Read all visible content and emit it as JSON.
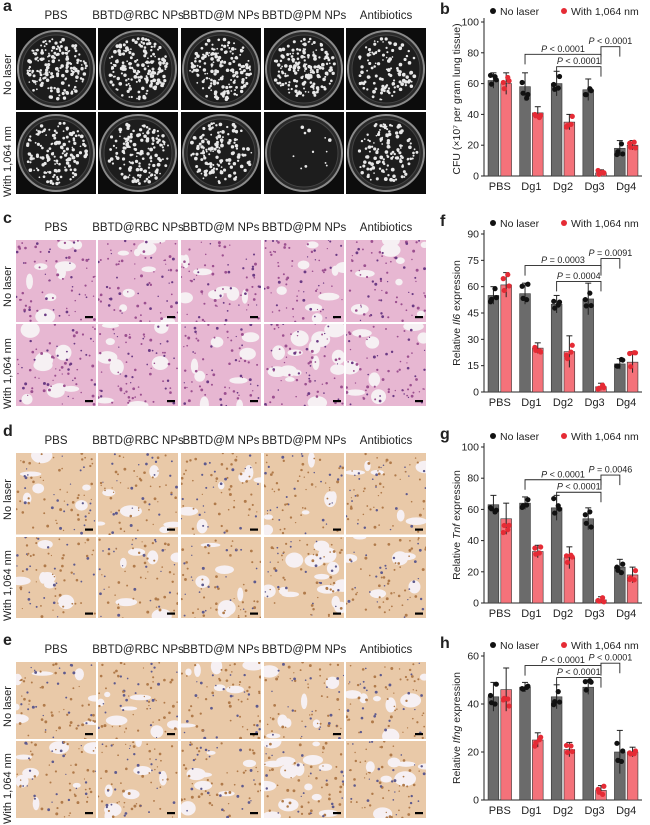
{
  "colors": {
    "gray": "#6b6b6b",
    "red": "#f4727a",
    "dark_dot": "#111111",
    "red_dot": "#e52b35"
  },
  "image_panels": [
    {
      "label": "a",
      "style": "petri",
      "columns": [
        "PBS",
        "BBTD@RBC NPs",
        "BBTD@M NPs",
        "BBTD@PM NPs",
        "Antibiotics"
      ],
      "rows": [
        "No laser",
        "With 1,064 nm"
      ]
    },
    {
      "label": "c",
      "style": "he",
      "columns": [
        "PBS",
        "BBTD@RBC NPs",
        "BBTD@M NPs",
        "BBTD@PM NPs",
        "Antibiotics"
      ],
      "rows": [
        "No laser",
        "With 1,064 nm"
      ]
    },
    {
      "label": "d",
      "style": "ihc",
      "columns": [
        "PBS",
        "BBTD@RBC NPs",
        "BBTD@M NPs",
        "BBTD@PM NPs",
        "Antibiotics"
      ],
      "rows": [
        "No laser",
        "With 1,064 nm"
      ]
    },
    {
      "label": "e",
      "style": "ihc",
      "columns": [
        "PBS",
        "BBTD@RBC NPs",
        "BBTD@M NPs",
        "BBTD@PM NPs",
        "Antibiotics"
      ],
      "rows": [
        "No laser",
        "With 1,064 nm"
      ]
    }
  ],
  "chart_data": [
    {
      "label": "b",
      "type": "bar",
      "categories": [
        "PBS",
        "Dg1",
        "Dg2",
        "Dg3",
        "Dg4"
      ],
      "ylabel": "CFU (×10⁷ per gram lung tissue)",
      "ylabel_italic_part": "",
      "ylim": [
        0,
        100
      ],
      "yticks": [
        0,
        20,
        40,
        60,
        80,
        100
      ],
      "series": [
        {
          "name": "No laser",
          "values": [
            62,
            58,
            60,
            56,
            18
          ],
          "err": [
            5,
            9,
            8,
            7,
            5
          ]
        },
        {
          "name": "With 1,064 nm",
          "values": [
            60,
            41,
            35,
            2,
            20
          ],
          "err": [
            7,
            4,
            5,
            2,
            3
          ]
        }
      ],
      "brackets": [
        {
          "text": "P < 0.0001",
          "from": [
            1,
            0
          ],
          "to": [
            3,
            1
          ],
          "level": 79
        },
        {
          "text": "P < 0.0001",
          "from": [
            2,
            0
          ],
          "to": [
            3,
            1
          ],
          "level": 71
        },
        {
          "text": "P < 0.0001",
          "from": [
            3,
            1
          ],
          "to": [
            4,
            0
          ],
          "level": 84
        }
      ]
    },
    {
      "label": "f",
      "type": "bar",
      "categories": [
        "PBS",
        "Dg1",
        "Dg2",
        "Dg3",
        "Dg4"
      ],
      "ylabel": "Relative Il6 expression",
      "ylabel_italic_part": "Il6",
      "ylim": [
        0,
        90
      ],
      "yticks": [
        0,
        15,
        30,
        45,
        60,
        75,
        90
      ],
      "series": [
        {
          "name": "No laser",
          "values": [
            55,
            56,
            50,
            53,
            16
          ],
          "err": [
            5,
            6,
            5,
            9,
            3
          ]
        },
        {
          "name": "With 1,064 nm",
          "values": [
            61,
            25,
            23,
            3,
            17
          ],
          "err": [
            7,
            3,
            9,
            2,
            6
          ]
        }
      ],
      "brackets": [
        {
          "text": "P = 0.0003",
          "from": [
            1,
            0
          ],
          "to": [
            3,
            1
          ],
          "level": 72
        },
        {
          "text": "P = 0.0004",
          "from": [
            2,
            0
          ],
          "to": [
            3,
            1
          ],
          "level": 63
        },
        {
          "text": "P = 0.0091",
          "from": [
            3,
            1
          ],
          "to": [
            4,
            0
          ],
          "level": 76
        }
      ]
    },
    {
      "label": "g",
      "type": "bar",
      "categories": [
        "PBS",
        "Dg1",
        "Dg2",
        "Dg3",
        "Dg4"
      ],
      "ylabel": "Relative Tnf expression",
      "ylabel_italic_part": "Tnf",
      "ylim": [
        0,
        100
      ],
      "yticks": [
        0,
        20,
        40,
        60,
        80,
        100
      ],
      "series": [
        {
          "name": "No laser",
          "values": [
            63,
            64,
            61,
            54,
            23
          ],
          "err": [
            6,
            4,
            8,
            7,
            5
          ]
        },
        {
          "name": "With 1,064 nm",
          "values": [
            54,
            33,
            29,
            2,
            18
          ],
          "err": [
            10,
            4,
            7,
            2,
            5
          ]
        }
      ],
      "brackets": [
        {
          "text": "P < 0.0001",
          "from": [
            1,
            0
          ],
          "to": [
            3,
            1
          ],
          "level": 79
        },
        {
          "text": "P < 0.0001",
          "from": [
            2,
            0
          ],
          "to": [
            3,
            1
          ],
          "level": 71
        },
        {
          "text": "P = 0.0046",
          "from": [
            3,
            1
          ],
          "to": [
            4,
            0
          ],
          "level": 82
        }
      ]
    },
    {
      "label": "h",
      "type": "bar",
      "categories": [
        "PBS",
        "Dg1",
        "Dg2",
        "Dg3",
        "Dg4"
      ],
      "ylabel": "Relative Ifng expression",
      "ylabel_italic_part": "Ifng",
      "ylim": [
        0,
        60
      ],
      "yticks": [
        0,
        20,
        40,
        60
      ],
      "series": [
        {
          "name": "No laser",
          "values": [
            43,
            47,
            43,
            47,
            20
          ],
          "err": [
            6,
            2,
            5,
            3,
            9
          ]
        },
        {
          "name": "With 1,064 nm",
          "values": [
            46,
            25,
            21,
            4,
            20
          ],
          "err": [
            9,
            3,
            3,
            2,
            2
          ]
        }
      ],
      "brackets": [
        {
          "text": "P < 0.0001",
          "from": [
            1,
            0
          ],
          "to": [
            3,
            1
          ],
          "level": 56
        },
        {
          "text": "P < 0.0001",
          "from": [
            2,
            0
          ],
          "to": [
            3,
            1
          ],
          "level": 51
        },
        {
          "text": "P < 0.0001",
          "from": [
            3,
            1
          ],
          "to": [
            4,
            0
          ],
          "level": 57
        }
      ]
    }
  ]
}
